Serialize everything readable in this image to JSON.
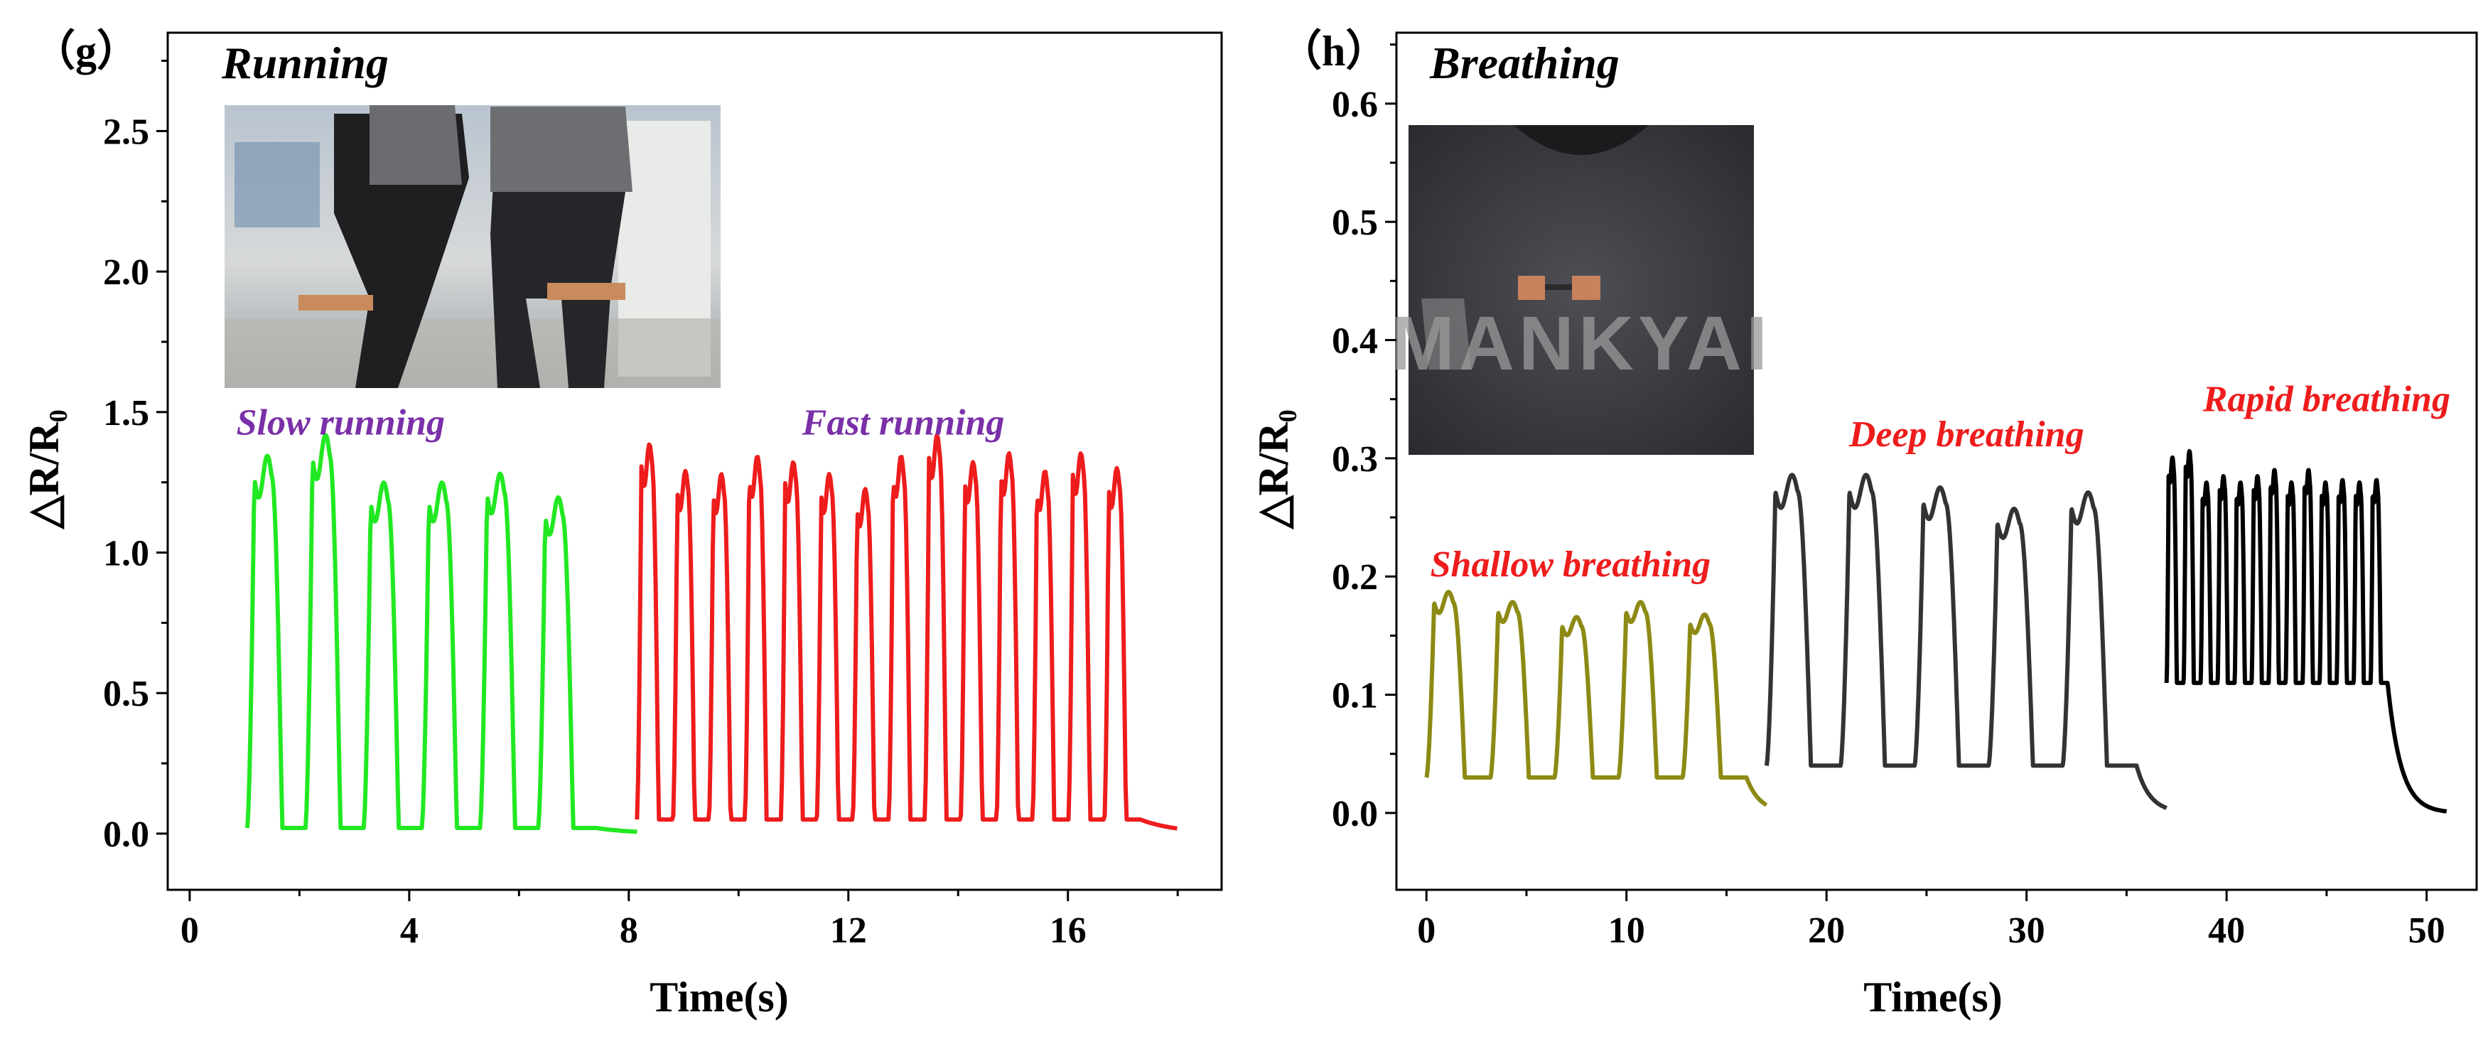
{
  "chart_data": [
    {
      "type": "line",
      "panel_label": "（g）",
      "title": "Running",
      "xlabel": "Time(s)",
      "ylabel": "△R/R₀",
      "xlim": [
        -0.4,
        18.8
      ],
      "ylim": [
        -0.2,
        2.85
      ],
      "xticks": [
        0,
        4,
        8,
        12,
        16
      ],
      "yticks": [
        0.0,
        0.5,
        1.0,
        1.5,
        2.0,
        2.5
      ],
      "ytick_labels": [
        "0.0",
        "0.5",
        "1.0",
        "1.5",
        "2.0",
        "2.5"
      ],
      "inset_photo": "photo of runner wearing knee sensors",
      "series": [
        {
          "name": "Slow running",
          "color": "#22e822",
          "cycles": {
            "start": 1.05,
            "period": 1.06,
            "peaks": [
              1.27,
              1.34,
              1.18,
              1.18,
              1.21,
              1.13
            ],
            "baseline": 0.02,
            "end": 8.15
          }
        },
        {
          "name": "Fast running",
          "color": "#ee1c1c",
          "cycles": {
            "start": 8.15,
            "period": 0.655,
            "peaks": [
              1.31,
              1.22,
              1.21,
              1.27,
              1.25,
              1.21,
              1.16,
              1.27,
              1.34,
              1.25,
              1.28,
              1.22,
              1.28,
              1.23
            ],
            "baseline": 0.05,
            "end": 18.0
          }
        }
      ],
      "annotations": [
        {
          "text": "Slow running",
          "color": "#7a30a8",
          "x": 2.75,
          "y": 1.42
        },
        {
          "text": "Fast running",
          "color": "#7a30a8",
          "x": 13.0,
          "y": 1.42
        }
      ]
    },
    {
      "type": "line",
      "panel_label": "（h）",
      "title": "Breathing",
      "xlabel": "Time(s)",
      "ylabel": "△R/R₀",
      "xlim": [
        -1.5,
        52.5
      ],
      "ylim": [
        -0.065,
        0.66
      ],
      "xticks": [
        0,
        10,
        20,
        30,
        40,
        50
      ],
      "yticks": [
        0.0,
        0.1,
        0.2,
        0.3,
        0.4,
        0.5,
        0.6
      ],
      "ytick_labels": [
        "0.0",
        "0.1",
        "0.2",
        "0.3",
        "0.4",
        "0.5",
        "0.6"
      ],
      "inset_photo": "photo of sweater with chest sensor",
      "series": [
        {
          "name": "Shallow breathing",
          "color": "#8c8a14",
          "cycles": {
            "start": 0.0,
            "period": 3.2,
            "peaks": [
              0.178,
              0.17,
              0.158,
              0.17,
              0.16
            ],
            "baseline": 0.03,
            "end": 17.0
          }
        },
        {
          "name": "Deep breathing",
          "color": "#333333",
          "cycles": {
            "start": 17.0,
            "period": 3.7,
            "peaks": [
              0.272,
              0.272,
              0.262,
              0.245,
              0.258
            ],
            "baseline": 0.04,
            "end": 37.0
          }
        },
        {
          "name": "Rapid breathing",
          "color": "#000000",
          "cycles": {
            "start": 37.0,
            "period": 0.85,
            "peaks": [
              0.29,
              0.295,
              0.27,
              0.275,
              0.27,
              0.275,
              0.28,
              0.27,
              0.28,
              0.27,
              0.272,
              0.27,
              0.272
            ],
            "baseline": 0.11,
            "end": 51.0
          }
        }
      ],
      "annotations": [
        {
          "text": "Shallow breathing",
          "color": "#ee1c1c",
          "x": 7.2,
          "y": 0.2
        },
        {
          "text": "Deep breathing",
          "color": "#ee1c1c",
          "x": 27.0,
          "y": 0.31
        },
        {
          "text": "Rapid breathing",
          "color": "#ee1c1c",
          "x": 45.0,
          "y": 0.34
        }
      ]
    }
  ]
}
